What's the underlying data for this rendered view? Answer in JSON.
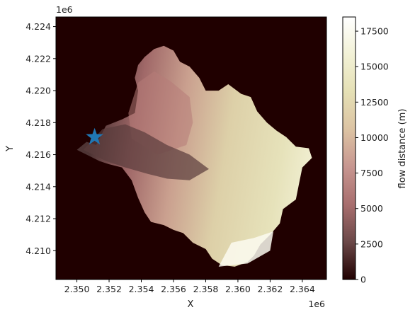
{
  "chart_data": {
    "type": "heatmap",
    "title": "",
    "xlabel": "X",
    "ylabel": "Y",
    "x_offset_label": "1e6",
    "y_offset_label": "1e6",
    "xlim": [
      2.3487,
      2.3655
    ],
    "ylim": [
      4.2082,
      4.2246
    ],
    "x_ticks": [
      2.35,
      2.352,
      2.354,
      2.356,
      2.358,
      2.36,
      2.362,
      2.364
    ],
    "x_tick_labels": [
      "2.350",
      "2.352",
      "2.354",
      "2.356",
      "2.358",
      "2.360",
      "2.362",
      "2.364"
    ],
    "y_ticks": [
      4.21,
      4.212,
      4.214,
      4.216,
      4.218,
      4.22,
      4.222,
      4.224
    ],
    "y_tick_labels": [
      "4.210",
      "4.212",
      "4.214",
      "4.216",
      "4.218",
      "4.220",
      "4.222",
      "4.224"
    ],
    "background_color": "#200000",
    "colorbar": {
      "label": "flow distance (m)",
      "min": 0,
      "max": 18500,
      "ticks": [
        0,
        2500,
        5000,
        7500,
        10000,
        12500,
        15000,
        17500
      ],
      "tick_labels": [
        "0",
        "2500",
        "5000",
        "7500",
        "10000",
        "12500",
        "15000",
        "17500"
      ],
      "colormap": "pink",
      "stops": [
        "#200000",
        "#6b4848",
        "#a86e6e",
        "#c79690",
        "#dcc3a3",
        "#e5e0b5",
        "#f2f1d6",
        "#ffffff"
      ]
    },
    "outlet_marker": {
      "x": 2.3511,
      "y": 4.2171,
      "symbol": "star",
      "color": "#2077b4"
    },
    "watershed_boundary": [
      [
        2.3512,
        4.2166
      ],
      [
        2.3518,
        4.2178
      ],
      [
        2.3528,
        4.2182
      ],
      [
        2.3536,
        4.2186
      ],
      [
        2.3538,
        4.22
      ],
      [
        2.3536,
        4.2208
      ],
      [
        2.3538,
        4.2216
      ],
      [
        2.3542,
        4.2221
      ],
      [
        2.3548,
        4.2226
      ],
      [
        2.3554,
        4.2228
      ],
      [
        2.356,
        4.2225
      ],
      [
        2.3564,
        4.2218
      ],
      [
        2.357,
        4.2215
      ],
      [
        2.3576,
        4.2208
      ],
      [
        2.358,
        4.22
      ],
      [
        2.3588,
        4.22
      ],
      [
        2.3594,
        4.2204
      ],
      [
        2.3602,
        4.2198
      ],
      [
        2.3608,
        4.2196
      ],
      [
        2.3612,
        4.2187
      ],
      [
        2.3618,
        4.218
      ],
      [
        2.3624,
        4.2175
      ],
      [
        2.363,
        4.2171
      ],
      [
        2.3636,
        4.2165
      ],
      [
        2.3644,
        4.2164
      ],
      [
        2.3646,
        4.2158
      ],
      [
        2.364,
        4.2152
      ],
      [
        2.3638,
        4.2142
      ],
      [
        2.3636,
        4.2132
      ],
      [
        2.3628,
        4.2126
      ],
      [
        2.3626,
        4.2117
      ],
      [
        2.362,
        4.211
      ],
      [
        2.3614,
        4.2104
      ],
      [
        2.361,
        4.2097
      ],
      [
        2.3606,
        4.2093
      ],
      [
        2.3598,
        4.209
      ],
      [
        2.359,
        4.2091
      ],
      [
        2.3584,
        4.2095
      ],
      [
        2.358,
        4.2101
      ],
      [
        2.3572,
        4.2105
      ],
      [
        2.3566,
        4.2111
      ],
      [
        2.356,
        4.2113
      ],
      [
        2.3554,
        4.2116
      ],
      [
        2.3546,
        4.2118
      ],
      [
        2.3542,
        4.2124
      ],
      [
        2.3538,
        4.2133
      ],
      [
        2.3534,
        4.2144
      ],
      [
        2.3528,
        4.2152
      ],
      [
        2.352,
        4.2154
      ],
      [
        2.3514,
        4.2156
      ],
      [
        2.3506,
        4.216
      ],
      [
        2.35,
        4.2163
      ],
      [
        2.3506,
        4.2168
      ],
      [
        2.3512,
        4.2166
      ]
    ],
    "low_distance_zone": [
      [
        2.3504,
        4.2163
      ],
      [
        2.3516,
        4.2176
      ],
      [
        2.353,
        4.2179
      ],
      [
        2.3542,
        4.2174
      ],
      [
        2.3556,
        4.2166
      ],
      [
        2.357,
        4.216
      ],
      [
        2.3582,
        4.2151
      ],
      [
        2.357,
        4.2144
      ],
      [
        2.3556,
        4.2145
      ],
      [
        2.3544,
        4.2148
      ],
      [
        2.353,
        4.2152
      ],
      [
        2.3518,
        4.2156
      ],
      [
        2.3504,
        4.2163
      ]
    ],
    "mid_distance_zone": [
      [
        2.3532,
        4.2186
      ],
      [
        2.3538,
        4.2205
      ],
      [
        2.3548,
        4.2212
      ],
      [
        2.3558,
        4.2206
      ],
      [
        2.357,
        4.2196
      ],
      [
        2.3572,
        4.218
      ],
      [
        2.3568,
        4.2166
      ],
      [
        2.355,
        4.216
      ],
      [
        2.3534,
        4.217
      ],
      [
        2.3532,
        4.2186
      ]
    ],
    "high_distance_zone": [
      [
        2.3588,
        4.209
      ],
      [
        2.3596,
        4.2105
      ],
      [
        2.361,
        4.2108
      ],
      [
        2.3622,
        4.2112
      ],
      [
        2.362,
        4.21
      ],
      [
        2.3606,
        4.2092
      ],
      [
        2.3588,
        4.209
      ]
    ]
  }
}
